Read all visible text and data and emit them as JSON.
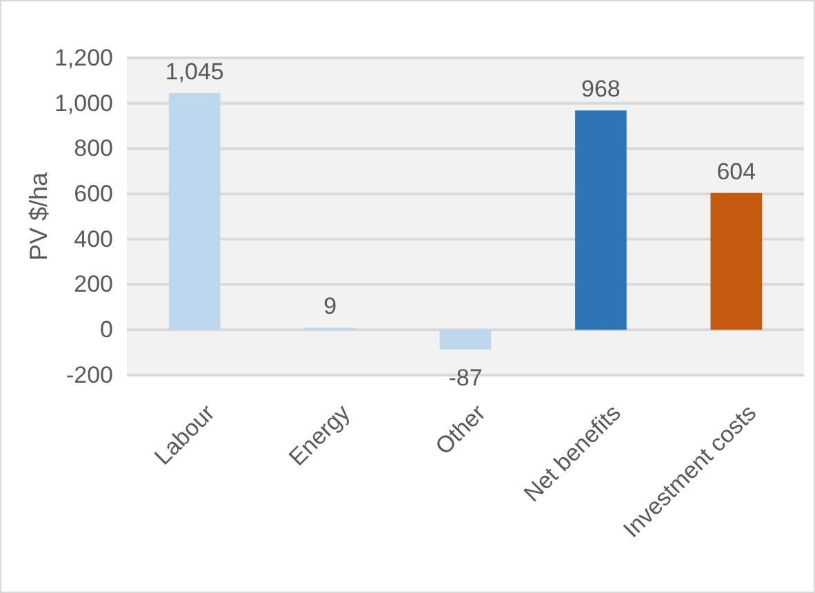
{
  "chart_data": {
    "type": "bar",
    "ylabel": "PV $/ha",
    "categories": [
      "Labour",
      "Energy",
      "Other",
      "Net benefits",
      "Investment costs"
    ],
    "values": [
      1045,
      9,
      -87,
      968,
      604
    ],
    "value_labels": [
      "1,045",
      "9",
      "-87",
      "968",
      "604"
    ],
    "colors": [
      "#bdd7ee",
      "#bdd7ee",
      "#bdd7ee",
      "#2e75b6",
      "#c55a11"
    ],
    "ylim": [
      -200,
      1200
    ],
    "yticks": [
      -200,
      0,
      200,
      400,
      600,
      800,
      {
        "value": 1000,
        "label": "1,000"
      },
      {
        "value": 1200,
        "label": "1,200"
      }
    ],
    "grid": "y"
  }
}
